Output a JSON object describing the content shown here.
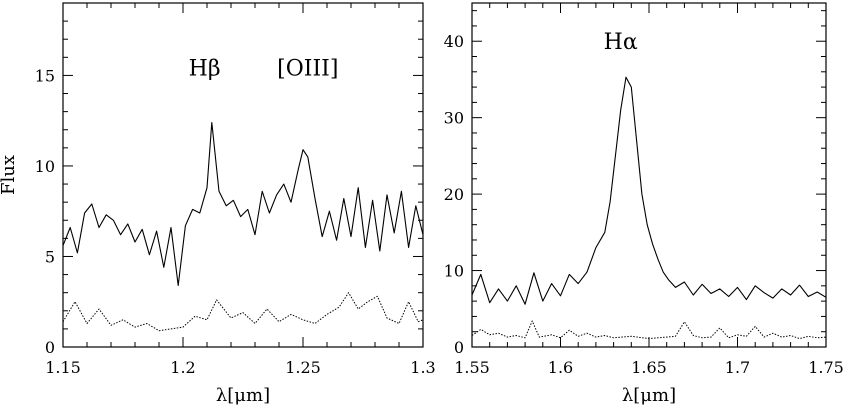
{
  "chart_data": [
    {
      "type": "line",
      "xlabel": "λ[μm]",
      "ylabel": "Flux",
      "xlim": [
        1.15,
        1.3
      ],
      "ylim": [
        0,
        19
      ],
      "xticks": [
        1.15,
        1.2,
        1.25,
        1.3
      ],
      "xtick_labels": [
        "1.15",
        "1.2",
        "1.25",
        "1.3"
      ],
      "yticks": [
        0,
        5,
        10,
        15
      ],
      "ytick_labels": [
        "0",
        "5",
        "10",
        "15"
      ],
      "annotations": [
        {
          "text": "Hβ",
          "x": 1.209,
          "y": 15
        },
        {
          "text": "[OIII]",
          "x": 1.252,
          "y": 15
        }
      ],
      "series": [
        {
          "style": "solid",
          "x": [
            1.15,
            1.153,
            1.156,
            1.159,
            1.162,
            1.165,
            1.168,
            1.171,
            1.174,
            1.177,
            1.18,
            1.183,
            1.186,
            1.189,
            1.192,
            1.195,
            1.198,
            1.201,
            1.204,
            1.207,
            1.21,
            1.212,
            1.215,
            1.218,
            1.221,
            1.224,
            1.227,
            1.23,
            1.233,
            1.236,
            1.239,
            1.242,
            1.245,
            1.248,
            1.25,
            1.252,
            1.255,
            1.258,
            1.261,
            1.264,
            1.267,
            1.27,
            1.273,
            1.276,
            1.279,
            1.282,
            1.285,
            1.288,
            1.291,
            1.294,
            1.297,
            1.3
          ],
          "y": [
            5.6,
            6.6,
            5.2,
            7.4,
            7.9,
            6.6,
            7.3,
            7.0,
            6.2,
            6.8,
            5.8,
            6.5,
            5.1,
            6.4,
            4.4,
            6.6,
            3.4,
            6.7,
            7.6,
            7.4,
            8.8,
            12.4,
            8.6,
            7.8,
            8.1,
            7.2,
            7.6,
            6.2,
            8.6,
            7.4,
            8.4,
            9.0,
            8.0,
            9.8,
            10.9,
            10.5,
            8.2,
            6.1,
            7.5,
            5.9,
            8.2,
            6.1,
            8.8,
            5.5,
            8.1,
            5.3,
            8.4,
            6.3,
            8.6,
            5.5,
            7.8,
            6.2
          ]
        },
        {
          "style": "dotted",
          "x": [
            1.15,
            1.155,
            1.16,
            1.165,
            1.17,
            1.175,
            1.18,
            1.185,
            1.19,
            1.195,
            1.2,
            1.205,
            1.21,
            1.214,
            1.22,
            1.225,
            1.23,
            1.235,
            1.24,
            1.245,
            1.25,
            1.255,
            1.26,
            1.265,
            1.269,
            1.273,
            1.277,
            1.281,
            1.285,
            1.29,
            1.294,
            1.298,
            1.3
          ],
          "y": [
            1.4,
            2.5,
            1.3,
            2.1,
            1.2,
            1.5,
            1.1,
            1.3,
            0.9,
            1.0,
            1.1,
            1.7,
            1.5,
            2.6,
            1.6,
            1.9,
            1.3,
            2.1,
            1.4,
            1.8,
            1.5,
            1.3,
            1.8,
            2.2,
            3.0,
            2.1,
            2.5,
            2.8,
            1.6,
            1.3,
            2.5,
            1.4,
            1.5
          ]
        }
      ]
    },
    {
      "type": "line",
      "xlabel": "λ[μm]",
      "ylabel": "",
      "xlim": [
        1.55,
        1.75
      ],
      "ylim": [
        0,
        45
      ],
      "xticks": [
        1.55,
        1.6,
        1.65,
        1.7,
        1.75
      ],
      "xtick_labels": [
        "1.55",
        "1.6",
        "1.65",
        "1.7",
        "1.75"
      ],
      "yticks": [
        0,
        10,
        20,
        30,
        40
      ],
      "ytick_labels": [
        "0",
        "10",
        "20",
        "30",
        "40"
      ],
      "annotations": [
        {
          "text": "Hα",
          "x": 1.634,
          "y": 39
        }
      ],
      "series": [
        {
          "style": "solid",
          "x": [
            1.55,
            1.555,
            1.56,
            1.565,
            1.57,
            1.575,
            1.58,
            1.585,
            1.59,
            1.595,
            1.6,
            1.605,
            1.61,
            1.615,
            1.62,
            1.625,
            1.628,
            1.631,
            1.634,
            1.637,
            1.64,
            1.643,
            1.646,
            1.649,
            1.652,
            1.655,
            1.658,
            1.661,
            1.665,
            1.67,
            1.675,
            1.68,
            1.685,
            1.69,
            1.695,
            1.7,
            1.705,
            1.71,
            1.715,
            1.72,
            1.725,
            1.73,
            1.735,
            1.74,
            1.745,
            1.75
          ],
          "y": [
            6.8,
            9.5,
            5.8,
            7.6,
            6.0,
            8.0,
            5.6,
            9.7,
            6.0,
            8.3,
            6.7,
            9.5,
            8.3,
            9.8,
            13.0,
            15.0,
            19.0,
            25.0,
            31.0,
            35.3,
            34.0,
            27.0,
            20.0,
            16.0,
            13.5,
            11.5,
            9.8,
            8.8,
            7.8,
            8.5,
            6.8,
            8.2,
            7.0,
            7.6,
            6.6,
            7.8,
            6.2,
            8.0,
            7.1,
            6.4,
            7.6,
            6.8,
            8.1,
            6.6,
            7.2,
            6.5
          ]
        },
        {
          "style": "dotted",
          "x": [
            1.55,
            1.555,
            1.56,
            1.565,
            1.57,
            1.575,
            1.58,
            1.584,
            1.588,
            1.595,
            1.6,
            1.605,
            1.61,
            1.615,
            1.62,
            1.625,
            1.63,
            1.64,
            1.65,
            1.66,
            1.665,
            1.67,
            1.675,
            1.68,
            1.685,
            1.69,
            1.695,
            1.7,
            1.705,
            1.71,
            1.715,
            1.72,
            1.725,
            1.73,
            1.735,
            1.74,
            1.745,
            1.75
          ],
          "y": [
            1.5,
            2.3,
            1.6,
            1.8,
            1.3,
            1.5,
            1.2,
            3.4,
            1.3,
            1.6,
            1.2,
            2.2,
            1.4,
            1.8,
            1.3,
            1.5,
            1.2,
            1.4,
            1.1,
            1.3,
            1.4,
            3.3,
            1.5,
            1.2,
            1.3,
            2.5,
            1.2,
            1.6,
            1.4,
            2.7,
            1.3,
            1.8,
            1.3,
            1.5,
            1.1,
            1.4,
            1.2,
            1.3
          ]
        }
      ]
    }
  ]
}
